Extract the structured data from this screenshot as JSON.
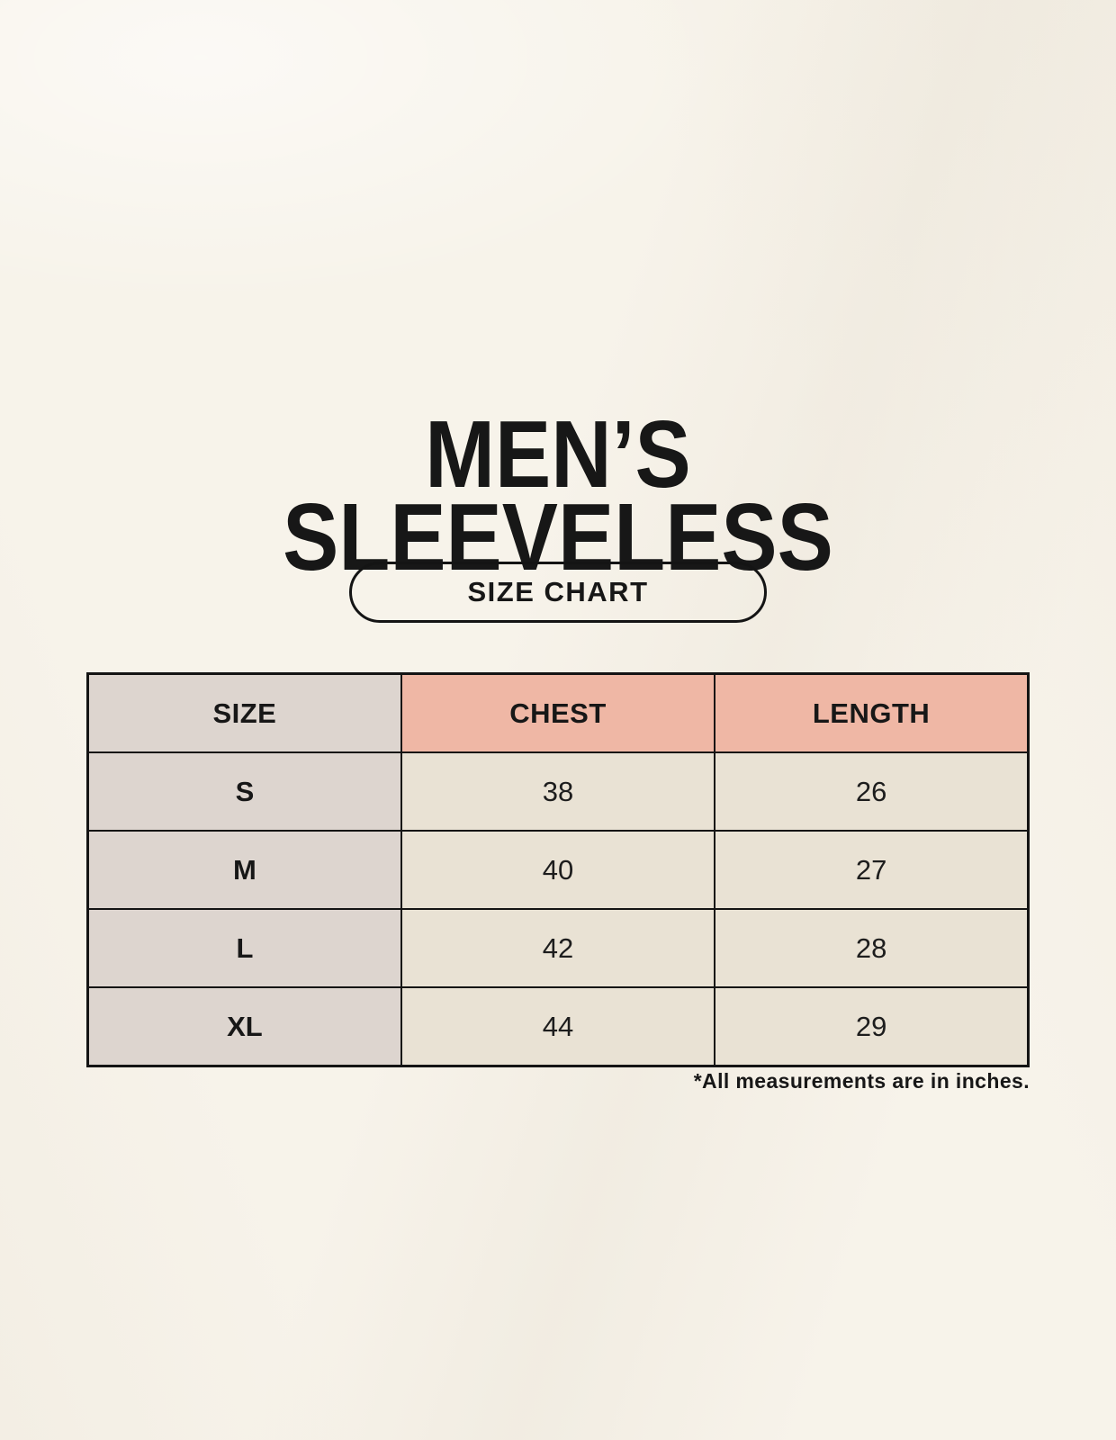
{
  "page": {
    "title_line1": "MEN’S",
    "title_line2": "SLEEVELESS",
    "badge_label": "SIZE CHART",
    "footnote": "*All measurements are in inches."
  },
  "table": {
    "columns": [
      "SIZE",
      "CHEST",
      "LENGTH"
    ],
    "rows": [
      {
        "size": "S",
        "chest": "38",
        "length": "26"
      },
      {
        "size": "M",
        "chest": "40",
        "length": "27"
      },
      {
        "size": "L",
        "chest": "42",
        "length": "28"
      },
      {
        "size": "XL",
        "chest": "44",
        "length": "29"
      }
    ]
  },
  "colors": {
    "background": "#f7f3ea",
    "header_pink": "#efb7a5",
    "size_column_gray": "#ddd5cf",
    "cell_beige": "#e9e2d4",
    "border_black": "#141414",
    "text_black": "#171717"
  }
}
